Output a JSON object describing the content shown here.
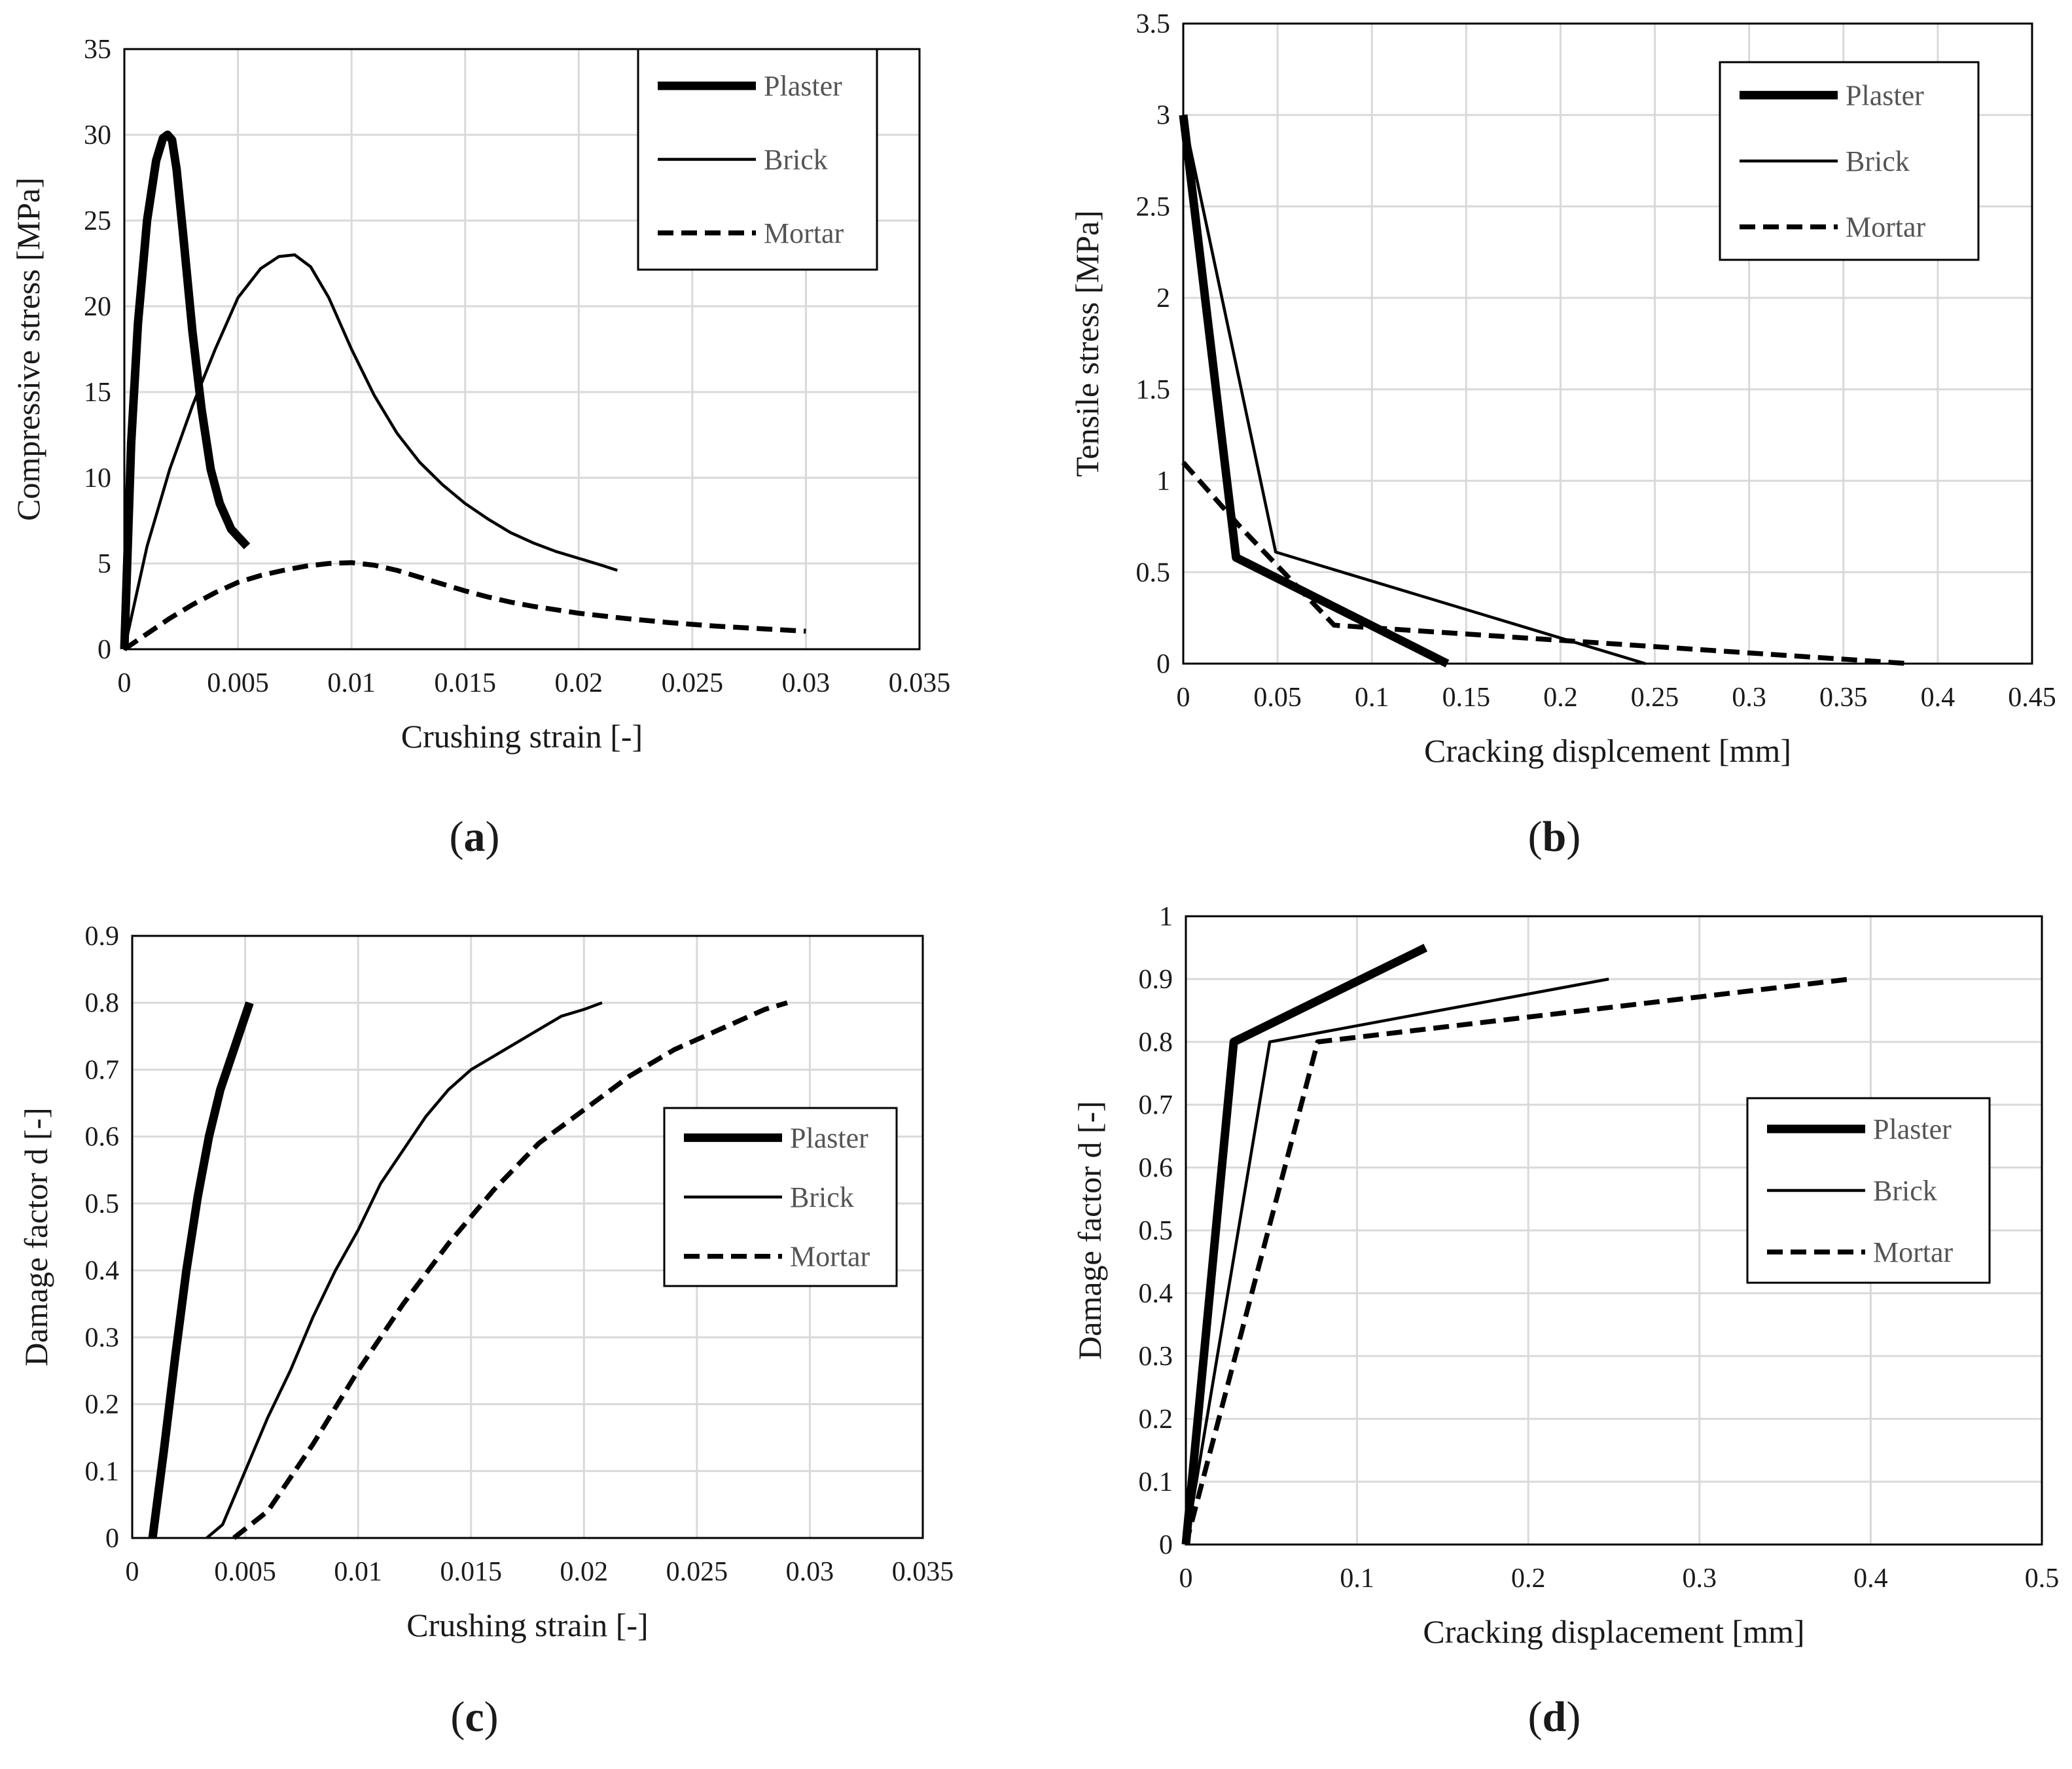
{
  "chart_data": [
    {
      "id": "a",
      "type": "line",
      "panel_label": "a",
      "xlabel": "Crushing strain [-]",
      "ylabel": "Compressive stress  [MPa]",
      "xlim": [
        0,
        0.035
      ],
      "ylim": [
        0,
        35
      ],
      "x_ticks": [
        0,
        0.005,
        0.01,
        0.015,
        0.02,
        0.025,
        0.03,
        0.035
      ],
      "x_tick_labels": [
        "0",
        "0.005",
        "0.01",
        "0.015",
        "0.02",
        "0.025",
        "0.03",
        "0.035"
      ],
      "y_ticks": [
        0,
        5,
        10,
        15,
        20,
        25,
        30,
        35
      ],
      "y_tick_labels": [
        "0",
        "5",
        "10",
        "15",
        "20",
        "25",
        "30",
        "35"
      ],
      "grid": true,
      "legend": [
        "Plaster",
        "Brick",
        "Mortar"
      ],
      "legend_position": "top-right",
      "series": [
        {
          "name": "Plaster",
          "style": "thick",
          "x": [
            0,
            0.0003,
            0.0006,
            0.001,
            0.0014,
            0.0017,
            0.0019,
            0.0021,
            0.0023,
            0.0026,
            0.003,
            0.0034,
            0.0038,
            0.0042,
            0.0047,
            0.0054
          ],
          "y": [
            0,
            12,
            19,
            25,
            28.5,
            29.8,
            30,
            29.7,
            28,
            24,
            18.5,
            14,
            10.5,
            8.5,
            7,
            6
          ]
        },
        {
          "name": "Brick",
          "style": "thin",
          "x": [
            0,
            0.001,
            0.002,
            0.003,
            0.004,
            0.005,
            0.006,
            0.0068,
            0.0075,
            0.0082,
            0.009,
            0.01,
            0.011,
            0.012,
            0.013,
            0.014,
            0.015,
            0.016,
            0.017,
            0.018,
            0.019,
            0.02,
            0.021,
            0.0217
          ],
          "y": [
            0,
            6,
            10.5,
            14.2,
            17.5,
            20.5,
            22.2,
            22.9,
            23,
            22.3,
            20.5,
            17.5,
            14.8,
            12.6,
            10.9,
            9.6,
            8.5,
            7.6,
            6.8,
            6.2,
            5.7,
            5.3,
            4.9,
            4.6
          ]
        },
        {
          "name": "Mortar",
          "style": "dashed",
          "x": [
            0,
            0.002,
            0.003,
            0.004,
            0.005,
            0.006,
            0.007,
            0.008,
            0.009,
            0.01,
            0.011,
            0.012,
            0.013,
            0.014,
            0.015,
            0.016,
            0.017,
            0.018,
            0.019,
            0.02,
            0.021,
            0.022,
            0.024,
            0.026,
            0.028,
            0.03
          ],
          "y": [
            0,
            1.8,
            2.6,
            3.3,
            3.9,
            4.3,
            4.6,
            4.85,
            5,
            5.05,
            4.9,
            4.6,
            4.2,
            3.8,
            3.4,
            3.05,
            2.75,
            2.5,
            2.3,
            2.1,
            1.95,
            1.8,
            1.55,
            1.35,
            1.2,
            1.05
          ]
        }
      ]
    },
    {
      "id": "b",
      "type": "line",
      "panel_label": "b",
      "xlabel": "Cracking displcement  [mm]",
      "ylabel": "Tensile stress  [MPa]",
      "xlim": [
        0,
        0.45
      ],
      "ylim": [
        0,
        3.5
      ],
      "x_ticks": [
        0,
        0.05,
        0.1,
        0.15,
        0.2,
        0.25,
        0.3,
        0.35,
        0.4,
        0.45
      ],
      "x_tick_labels": [
        "0",
        "0.05",
        "0.1",
        "0.15",
        "0.2",
        "0.25",
        "0.3",
        "0.35",
        "0.4",
        "0.45"
      ],
      "y_ticks": [
        0,
        0.5,
        1,
        1.5,
        2,
        2.5,
        3,
        3.5
      ],
      "y_tick_labels": [
        "0",
        "0.5",
        "1",
        "1.5",
        "2",
        "2.5",
        "3",
        "3.5"
      ],
      "grid": true,
      "legend": [
        "Plaster",
        "Brick",
        "Mortar"
      ],
      "legend_position": "top-right",
      "series": [
        {
          "name": "Plaster",
          "style": "thick",
          "x": [
            0,
            0.028,
            0.14
          ],
          "y": [
            3,
            0.58,
            0
          ]
        },
        {
          "name": "Brick",
          "style": "thin",
          "x": [
            0,
            0.049,
            0.245
          ],
          "y": [
            3,
            0.61,
            0
          ]
        },
        {
          "name": "Mortar",
          "style": "dashed",
          "x": [
            0,
            0.03,
            0.08,
            0.385
          ],
          "y": [
            1.1,
            0.75,
            0.21,
            0
          ]
        }
      ]
    },
    {
      "id": "c",
      "type": "line",
      "panel_label": "c",
      "xlabel": "Crushing strain [-]",
      "ylabel": "Damage factor d [-]",
      "xlim": [
        0,
        0.035
      ],
      "ylim": [
        0,
        0.9
      ],
      "x_ticks": [
        0,
        0.005,
        0.01,
        0.015,
        0.02,
        0.025,
        0.03,
        0.035
      ],
      "x_tick_labels": [
        "0",
        "0.005",
        "0.01",
        "0.015",
        "0.02",
        "0.025",
        "0.03",
        "0.035"
      ],
      "y_ticks": [
        0,
        0.1,
        0.2,
        0.3,
        0.4,
        0.5,
        0.6,
        0.7,
        0.8,
        0.9
      ],
      "y_tick_labels": [
        "0",
        "0.1",
        "0.2",
        "0.3",
        "0.4",
        "0.5",
        "0.6",
        "0.7",
        "0.8",
        "0.9"
      ],
      "grid": true,
      "legend": [
        "Plaster",
        "Brick",
        "Mortar"
      ],
      "legend_position": "center-right",
      "series": [
        {
          "name": "Plaster",
          "style": "thick",
          "x": [
            0.0009,
            0.0014,
            0.0019,
            0.0024,
            0.0029,
            0.0034,
            0.0039,
            0.0045,
            0.0052
          ],
          "y": [
            0,
            0.13,
            0.27,
            0.4,
            0.51,
            0.6,
            0.67,
            0.73,
            0.8
          ]
        },
        {
          "name": "Brick",
          "style": "thin",
          "x": [
            0.0033,
            0.004,
            0.005,
            0.006,
            0.007,
            0.008,
            0.009,
            0.01,
            0.011,
            0.012,
            0.013,
            0.014,
            0.015,
            0.016,
            0.017,
            0.018,
            0.019,
            0.02,
            0.0208
          ],
          "y": [
            0,
            0.02,
            0.1,
            0.18,
            0.25,
            0.33,
            0.4,
            0.46,
            0.53,
            0.58,
            0.63,
            0.67,
            0.7,
            0.72,
            0.74,
            0.76,
            0.78,
            0.79,
            0.8
          ]
        },
        {
          "name": "Mortar",
          "style": "dashed",
          "x": [
            0.0045,
            0.006,
            0.008,
            0.01,
            0.012,
            0.014,
            0.016,
            0.018,
            0.02,
            0.022,
            0.024,
            0.026,
            0.028,
            0.029
          ],
          "y": [
            0,
            0.04,
            0.14,
            0.25,
            0.35,
            0.44,
            0.52,
            0.59,
            0.64,
            0.69,
            0.73,
            0.76,
            0.79,
            0.8
          ]
        }
      ]
    },
    {
      "id": "d",
      "type": "line",
      "panel_label": "d",
      "xlabel": "Cracking displacement  [mm]",
      "ylabel": "Damage factor d [-]",
      "xlim": [
        0,
        0.5
      ],
      "ylim": [
        0,
        1
      ],
      "x_ticks": [
        0,
        0.1,
        0.2,
        0.3,
        0.4,
        0.5
      ],
      "x_tick_labels": [
        "0",
        "0.1",
        "0.2",
        "0.3",
        "0.4",
        "0.5"
      ],
      "y_ticks": [
        0,
        0.1,
        0.2,
        0.3,
        0.4,
        0.5,
        0.6,
        0.7,
        0.8,
        0.9,
        1
      ],
      "y_tick_labels": [
        "0",
        "0.1",
        "0.2",
        "0.3",
        "0.4",
        "0.5",
        "0.6",
        "0.7",
        "0.8",
        "0.9",
        "1"
      ],
      "grid": true,
      "legend": [
        "Plaster",
        "Brick",
        "Mortar"
      ],
      "legend_position": "center-right",
      "series": [
        {
          "name": "Plaster",
          "style": "thick",
          "x": [
            0,
            0.028,
            0.14
          ],
          "y": [
            0,
            0.8,
            0.95
          ]
        },
        {
          "name": "Brick",
          "style": "thin",
          "x": [
            0,
            0.049,
            0.247
          ],
          "y": [
            0,
            0.8,
            0.9
          ]
        },
        {
          "name": "Mortar",
          "style": "dashed",
          "x": [
            0,
            0.077,
            0.388
          ],
          "y": [
            0,
            0.8,
            0.9
          ]
        }
      ]
    }
  ]
}
